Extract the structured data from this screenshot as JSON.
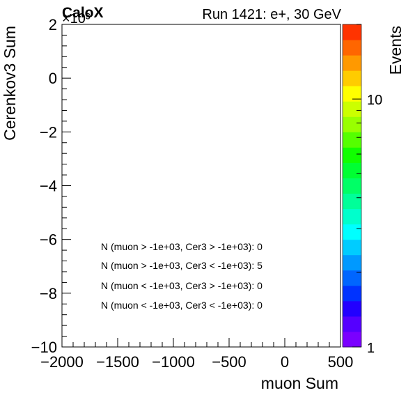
{
  "chart_data": {
    "type": "heatmap",
    "title": "Run 1421: e+, 30 GeV",
    "brand": "CaloX",
    "xlabel": "muon Sum",
    "ylabel": "Cerenkov3 Sum",
    "y_exponent": "×10³",
    "xlim": [
      -2000,
      500
    ],
    "ylim": [
      -10,
      2
    ],
    "x_ticks": [
      {
        "value": -2000,
        "label": "−2000"
      },
      {
        "value": -1500,
        "label": "−1500"
      },
      {
        "value": -1000,
        "label": "−1000"
      },
      {
        "value": -500,
        "label": "−500"
      },
      {
        "value": 0,
        "label": "0"
      },
      {
        "value": 500,
        "label": "500"
      }
    ],
    "y_ticks": [
      {
        "value": 2,
        "label": "2"
      },
      {
        "value": 0,
        "label": "0"
      },
      {
        "value": -2,
        "label": "−2"
      },
      {
        "value": -4,
        "label": "−4"
      },
      {
        "value": -6,
        "label": "−6"
      },
      {
        "value": -8,
        "label": "−8"
      },
      {
        "value": -10,
        "label": "−10"
      }
    ],
    "colorbar": {
      "label": "Events",
      "scale": "log",
      "range": [
        1,
        20
      ],
      "ticks": [
        {
          "value": 1,
          "label": "1"
        },
        {
          "value": 10,
          "label": "10"
        }
      ],
      "colors": [
        "#7a00ff",
        "#5500ff",
        "#2200ff",
        "#0033ff",
        "#0066ff",
        "#0099ff",
        "#00ccff",
        "#00ffff",
        "#00ffcc",
        "#00ff99",
        "#00ff66",
        "#00ff33",
        "#11ff00",
        "#55ff00",
        "#99ff00",
        "#ccff00",
        "#ffff00",
        "#ffcc00",
        "#ff9900",
        "#ff6600",
        "#ff3300"
      ]
    },
    "annotations": [
      "N (muon > -1e+03, Cer3 > -1e+03): 0",
      "N (muon > -1e+03, Cer3 < -1e+03): 5",
      "N (muon < -1e+03, Cer3 > -1e+03): 0",
      "N (muon < -1e+03, Cer3 < -1e+03): 0"
    ]
  }
}
